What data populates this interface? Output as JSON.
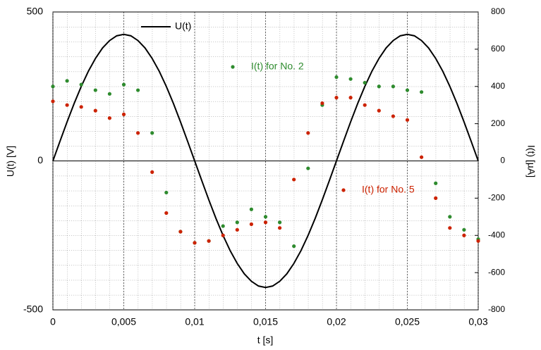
{
  "chart_data": {
    "type": "line",
    "xlabel": "t  [s]",
    "ylabel": "U(t)  [V]",
    "y2label": "I(t)  [µA]",
    "xlim": [
      0,
      0.03
    ],
    "ylim": [
      -500,
      500
    ],
    "y2lim": [
      -800,
      800
    ],
    "xticks": [
      0,
      {
        "value": 0.005,
        "label": "0,005"
      },
      {
        "value": 0.01,
        "label": "0,01"
      },
      {
        "value": 0.015,
        "label": "0,015"
      },
      {
        "value": 0.02,
        "label": "0,02"
      },
      {
        "value": 0.025,
        "label": "0,025"
      },
      {
        "value": 0.03,
        "label": "0,03"
      }
    ],
    "yticks": [
      -500,
      0,
      500
    ],
    "y2ticks": [
      -800,
      -600,
      -400,
      -200,
      0,
      200,
      400,
      600,
      800
    ],
    "grid": true,
    "series": [
      {
        "name": "U(t)",
        "type": "line",
        "color": "#000000",
        "x": [
          0,
          0.0005,
          0.001,
          0.0015,
          0.002,
          0.0025,
          0.003,
          0.0035,
          0.004,
          0.0045,
          0.005,
          0.0055,
          0.006,
          0.0065,
          0.007,
          0.0075,
          0.008,
          0.0085,
          0.009,
          0.0095,
          0.01,
          0.0105,
          0.011,
          0.0115,
          0.012,
          0.0125,
          0.013,
          0.0135,
          0.014,
          0.0145,
          0.015,
          0.0155,
          0.016,
          0.0165,
          0.017,
          0.0175,
          0.018,
          0.0185,
          0.019,
          0.0195,
          0.02,
          0.0205,
          0.021,
          0.0215,
          0.022,
          0.0225,
          0.023,
          0.0235,
          0.024,
          0.0245,
          0.025,
          0.0255,
          0.026,
          0.0265,
          0.027,
          0.0275,
          0.028,
          0.0285,
          0.029,
          0.0295,
          0.03
        ],
        "values": [
          0,
          66,
          131,
          193,
          250,
          301,
          344,
          379,
          404,
          420,
          425,
          420,
          404,
          379,
          344,
          301,
          250,
          193,
          131,
          66,
          0,
          -66,
          -131,
          -193,
          -250,
          -301,
          -344,
          -379,
          -404,
          -420,
          -425,
          -420,
          -404,
          -379,
          -344,
          -301,
          -250,
          -193,
          -131,
          -66,
          0,
          66,
          131,
          193,
          250,
          301,
          344,
          379,
          404,
          420,
          425,
          420,
          404,
          379,
          344,
          301,
          250,
          193,
          131,
          66,
          0
        ]
      },
      {
        "name": "I(t) for No. 2",
        "type": "scatter",
        "axis": "y2",
        "color": "#2e8b2e",
        "x": [
          0,
          0.001,
          0.002,
          0.003,
          0.004,
          0.005,
          0.006,
          0.007,
          0.008,
          0.009,
          0.01,
          0.011,
          0.012,
          0.013,
          0.014,
          0.015,
          0.016,
          0.017,
          0.018,
          0.019,
          0.02,
          0.021,
          0.022,
          0.023,
          0.024,
          0.025,
          0.026,
          0.027,
          0.028,
          0.029,
          0.03
        ],
        "values": [
          400,
          430,
          410,
          380,
          360,
          410,
          380,
          150,
          -170,
          -380,
          -440,
          -430,
          -350,
          -330,
          -260,
          -300,
          -330,
          -458,
          -40,
          300,
          450,
          440,
          420,
          400,
          400,
          380,
          370,
          -120,
          -300,
          -370,
          -420
        ]
      },
      {
        "name": "I(t) for No. 5",
        "type": "scatter",
        "axis": "y2",
        "color": "#cc2200",
        "x": [
          0,
          0.001,
          0.002,
          0.003,
          0.004,
          0.005,
          0.006,
          0.007,
          0.008,
          0.009,
          0.01,
          0.011,
          0.012,
          0.013,
          0.014,
          0.015,
          0.016,
          0.017,
          0.018,
          0.019,
          0.02,
          0.021,
          0.022,
          0.023,
          0.024,
          0.025,
          0.026,
          0.027,
          0.028,
          0.029,
          0.03
        ],
        "values": [
          320,
          300,
          290,
          270,
          230,
          250,
          150,
          -60,
          -280,
          -380,
          -440,
          -430,
          -400,
          -370,
          -340,
          -330,
          -360,
          -100,
          150,
          310,
          340,
          340,
          300,
          270,
          240,
          220,
          20,
          -200,
          -360,
          -400,
          -430
        ]
      }
    ]
  }
}
